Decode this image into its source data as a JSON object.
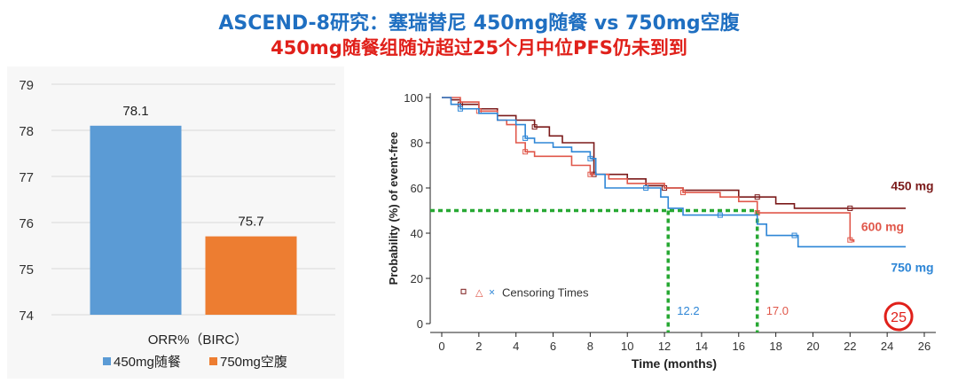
{
  "header": {
    "title": "ASCEND-8研究：塞瑞替尼 450mg随餐 vs 750mg空腹",
    "subtitle": "450mg随餐组随访超过25个月中位PFS仍未到到"
  },
  "chart_data": [
    {
      "type": "bar",
      "categories": [
        "450mg随餐",
        "750mg空腹"
      ],
      "values": [
        78.1,
        75.7
      ],
      "data_labels": [
        "78.1",
        "75.7"
      ],
      "xlabel": "ORR%（BIRC）",
      "ylim": [
        74,
        79
      ],
      "yticks": [
        "74",
        "75",
        "76",
        "77",
        "78",
        "79"
      ],
      "grid": true,
      "legend": {
        "placement": "bottom",
        "entries": [
          {
            "name": "450mg随餐",
            "color": "#5b9bd5"
          },
          {
            "name": "750mg空腹",
            "color": "#ed7d31"
          }
        ]
      },
      "colors": [
        "#5b9bd5",
        "#ed7d31"
      ]
    },
    {
      "type": "line",
      "xlabel": "Time (months)",
      "ylabel": "Probability (%) of event-free",
      "xlim": [
        0,
        26
      ],
      "ylim": [
        0,
        100
      ],
      "xticks": [
        "0",
        "2",
        "4",
        "6",
        "8",
        "10",
        "12",
        "14",
        "16",
        "18",
        "20",
        "22",
        "24",
        "26"
      ],
      "yticks": [
        "0",
        "20",
        "40",
        "60",
        "80",
        "100"
      ],
      "legend": {
        "placement": "bottom-left",
        "text": "Censoring Times"
      },
      "series": [
        {
          "name": "450 mg",
          "color": "#7b1a1a",
          "points": [
            [
              0,
              100
            ],
            [
              0.5,
              99
            ],
            [
              1,
              97
            ],
            [
              2,
              95
            ],
            [
              3,
              92
            ],
            [
              4,
              90
            ],
            [
              5,
              87
            ],
            [
              5.8,
              83
            ],
            [
              6.5,
              80
            ],
            [
              7.5,
              80
            ],
            [
              8.2,
              66
            ],
            [
              9,
              66
            ],
            [
              10,
              64
            ],
            [
              11,
              61
            ],
            [
              12,
              60
            ],
            [
              13,
              59
            ],
            [
              15,
              59
            ],
            [
              16,
              56
            ],
            [
              17,
              56
            ],
            [
              18,
              53
            ],
            [
              19,
              51
            ],
            [
              20,
              51
            ],
            [
              22,
              51
            ],
            [
              25,
              51
            ]
          ]
        },
        {
          "name": "600 mg",
          "color": "#e0574a",
          "points": [
            [
              0,
              100
            ],
            [
              1,
              98
            ],
            [
              2,
              94
            ],
            [
              3,
              90
            ],
            [
              3.5,
              88
            ],
            [
              4,
              80
            ],
            [
              4.5,
              76
            ],
            [
              5,
              74
            ],
            [
              6,
              74
            ],
            [
              7,
              70
            ],
            [
              8,
              66
            ],
            [
              9,
              64
            ],
            [
              10,
              62
            ],
            [
              12,
              60
            ],
            [
              13,
              58
            ],
            [
              14,
              58
            ],
            [
              15,
              56
            ],
            [
              16,
              54
            ],
            [
              17,
              49
            ],
            [
              18,
              49
            ],
            [
              20,
              49
            ],
            [
              22,
              49
            ],
            [
              22,
              37
            ],
            [
              22.2,
              36
            ]
          ]
        },
        {
          "name": "750 mg",
          "color": "#2e86d6",
          "points": [
            [
              0,
              100
            ],
            [
              0.5,
              97
            ],
            [
              1,
              95
            ],
            [
              2,
              93
            ],
            [
              3,
              90
            ],
            [
              4,
              88
            ],
            [
              4.5,
              82
            ],
            [
              5,
              80
            ],
            [
              6,
              78
            ],
            [
              7,
              76
            ],
            [
              8,
              73
            ],
            [
              8.3,
              66
            ],
            [
              8.8,
              60
            ],
            [
              10,
              60
            ],
            [
              11,
              60
            ],
            [
              11.8,
              56
            ],
            [
              12.2,
              51
            ],
            [
              13,
              48
            ],
            [
              15,
              48
            ],
            [
              16,
              48
            ],
            [
              17,
              44
            ],
            [
              17.5,
              39
            ],
            [
              19,
              39
            ],
            [
              19.2,
              34
            ],
            [
              20,
              34
            ],
            [
              25,
              34
            ]
          ]
        }
      ],
      "median_line": {
        "y": 50
      },
      "median_markers": [
        {
          "x": 12.2,
          "label": "12.2"
        },
        {
          "x": 17.0,
          "label": "17.0"
        },
        {
          "x": 25,
          "label": "25"
        }
      ]
    }
  ]
}
